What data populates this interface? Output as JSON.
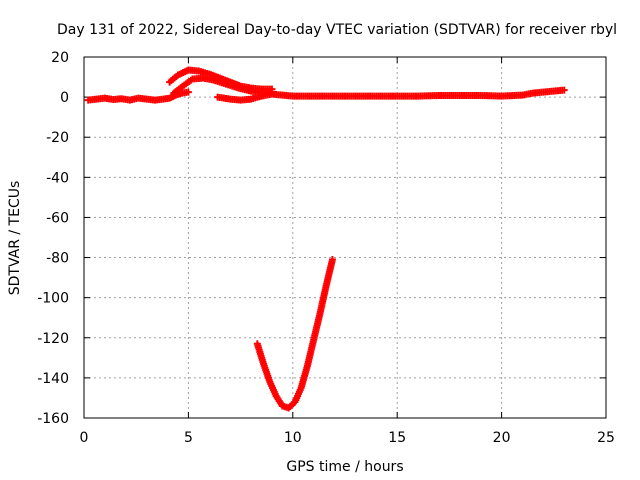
{
  "chart_data": {
    "type": "scatter",
    "title": "Day 131 of 2022, Sidereal Day-to-day VTEC variation (SDTVAR) for receiver rbyl",
    "xlabel": "GPS time / hours",
    "ylabel": "SDTVAR / TECUs",
    "xlim": [
      0,
      25
    ],
    "ylim": [
      -160,
      20
    ],
    "xticks": [
      0,
      5,
      10,
      15,
      20,
      25
    ],
    "yticks": [
      -160,
      -140,
      -120,
      -100,
      -80,
      -60,
      -40,
      -20,
      0,
      20
    ],
    "grid": true,
    "marker": "plus",
    "series": [
      {
        "color": "#ff0000",
        "segments": [
          [
            [
              0.2,
              -1.5
            ],
            [
              0.6,
              -1.0
            ],
            [
              1.0,
              -0.5
            ],
            [
              1.4,
              -1.2
            ],
            [
              1.8,
              -0.8
            ],
            [
              2.2,
              -1.5
            ],
            [
              2.6,
              -0.5
            ],
            [
              3.0,
              -1.0
            ],
            [
              3.4,
              -1.5
            ],
            [
              3.8,
              -1.0
            ],
            [
              4.1,
              -0.5
            ],
            [
              4.4,
              1.0
            ],
            [
              4.7,
              2.0
            ],
            [
              5.0,
              2.5
            ]
          ],
          [
            [
              4.1,
              7.5
            ],
            [
              4.5,
              11.0
            ],
            [
              5.0,
              13.5
            ],
            [
              5.5,
              13.0
            ],
            [
              6.0,
              11.5
            ],
            [
              6.5,
              9.5
            ],
            [
              7.0,
              7.5
            ],
            [
              7.5,
              5.5
            ],
            [
              8.0,
              4.5
            ],
            [
              8.5,
              4.0
            ],
            [
              9.0,
              4.0
            ]
          ],
          [
            [
              4.3,
              2.0
            ],
            [
              4.8,
              6.0
            ],
            [
              5.2,
              9.0
            ],
            [
              5.7,
              9.5
            ],
            [
              6.2,
              8.5
            ],
            [
              6.8,
              6.5
            ],
            [
              7.4,
              4.5
            ],
            [
              8.0,
              3.0
            ],
            [
              8.6,
              2.0
            ],
            [
              9.0,
              2.5
            ]
          ],
          [
            [
              6.4,
              0.0
            ],
            [
              7.0,
              -1.0
            ],
            [
              7.5,
              -1.5
            ],
            [
              8.0,
              -1.0
            ],
            [
              8.5,
              0.5
            ],
            [
              9.0,
              1.5
            ],
            [
              9.5,
              1.0
            ],
            [
              10.0,
              0.5
            ],
            [
              11.0,
              0.5
            ],
            [
              12.0,
              0.5
            ],
            [
              13.0,
              0.5
            ],
            [
              14.0,
              0.5
            ],
            [
              15.0,
              0.5
            ],
            [
              16.0,
              0.5
            ],
            [
              17.0,
              0.8
            ],
            [
              18.0,
              0.8
            ],
            [
              19.0,
              0.8
            ],
            [
              20.0,
              0.5
            ],
            [
              21.0,
              1.0
            ],
            [
              21.5,
              2.0
            ],
            [
              22.0,
              2.5
            ],
            [
              22.5,
              3.0
            ],
            [
              23.0,
              3.5
            ]
          ],
          [
            [
              8.3,
              -123
            ],
            [
              8.6,
              -133
            ],
            [
              8.9,
              -142
            ],
            [
              9.2,
              -149
            ],
            [
              9.5,
              -154
            ],
            [
              9.8,
              -155
            ],
            [
              10.1,
              -152
            ],
            [
              10.4,
              -145
            ],
            [
              10.7,
              -134
            ],
            [
              11.0,
              -121
            ],
            [
              11.3,
              -108
            ],
            [
              11.6,
              -94
            ],
            [
              11.9,
              -81
            ]
          ]
        ]
      }
    ]
  }
}
